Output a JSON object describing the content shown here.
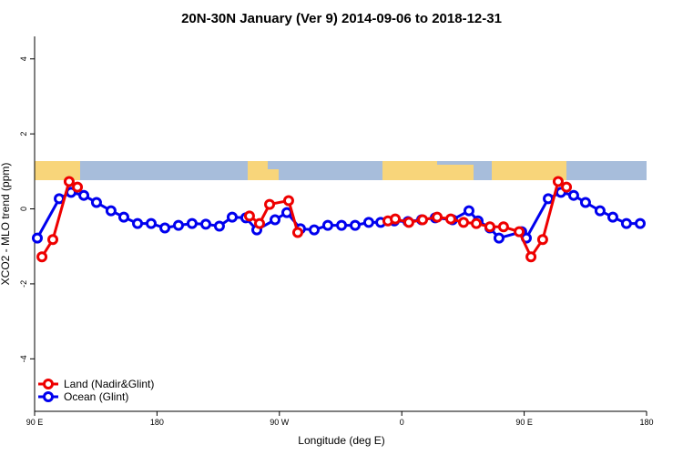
{
  "chart_data": {
    "type": "line",
    "title": "20N-30N January (Ver 9)   2014-09-06 to 2018-12-31",
    "x_label": "Longitude (deg E)",
    "y_label": "XCO2 - MLO trend (ppm)",
    "xlim": [
      90,
      540
    ],
    "ylim": [
      -5.4,
      4.6
    ],
    "xticks": [
      {
        "value": 90,
        "label": "90 E"
      },
      {
        "value": 180,
        "label": "180"
      },
      {
        "value": 270,
        "label": "90 W"
      },
      {
        "value": 360,
        "label": "0"
      },
      {
        "value": 450,
        "label": "90 E"
      },
      {
        "value": 540,
        "label": "180"
      }
    ],
    "yticks": [
      -4,
      -2,
      0,
      2,
      4
    ],
    "legend": "bottom-left",
    "series": [
      {
        "name": "Ocean (Glint)",
        "color": "#0000ee",
        "x": [
          92.0,
          108.1,
          116.8,
          126.2,
          135.5,
          146.2,
          155.6,
          165.7,
          175.7,
          185.8,
          195.8,
          205.8,
          215.9,
          225.9,
          235.3,
          245.3,
          253.4,
          266.8,
          275.5,
          285.5,
          295.6,
          305.6,
          315.7,
          325.7,
          335.7,
          344.5,
          354.5,
          364.5,
          374.6,
          384.6,
          397.3,
          409.4,
          416.1,
          424.8,
          431.5,
          448.2,
          451.6,
          467.7,
          477.0,
          486.4,
          495.1,
          505.8,
          515.2,
          525.2,
          535.3
        ],
        "values": [
          -0.78,
          0.27,
          0.44,
          0.36,
          0.17,
          -0.05,
          -0.22,
          -0.39,
          -0.39,
          -0.51,
          -0.44,
          -0.39,
          -0.41,
          -0.46,
          -0.22,
          -0.24,
          -0.56,
          -0.29,
          -0.1,
          -0.53,
          -0.56,
          -0.44,
          -0.44,
          -0.44,
          -0.36,
          -0.36,
          -0.32,
          -0.34,
          -0.29,
          -0.24,
          -0.29,
          -0.05,
          -0.32,
          -0.51,
          -0.78,
          -0.61,
          -0.78,
          0.27,
          0.44,
          0.36,
          0.17,
          -0.05,
          -0.22,
          -0.39,
          -0.39
        ]
      },
      {
        "name": "Land (Nadir&Glint)",
        "color": "#ee0000",
        "x": [
          95.4,
          103.4,
          115.4,
          121.5,
          200,
          248.0,
          255.4,
          262.8,
          276.8,
          283.5,
          340,
          349.8,
          355.2,
          365.2,
          375.3,
          386.0,
          396.0,
          405.4,
          414.8,
          424.8,
          434.8,
          446.3,
          455.0,
          463.6,
          475.0,
          481.1
        ],
        "values": [
          -1.28,
          -0.82,
          0.73,
          0.58,
          null,
          -0.19,
          -0.39,
          0.12,
          0.22,
          -0.63,
          null,
          -0.32,
          -0.27,
          -0.36,
          -0.29,
          -0.22,
          -0.27,
          -0.36,
          -0.39,
          -0.48,
          -0.48,
          -0.61,
          -1.28,
          -0.82,
          0.73,
          0.58
        ]
      }
    ]
  }
}
